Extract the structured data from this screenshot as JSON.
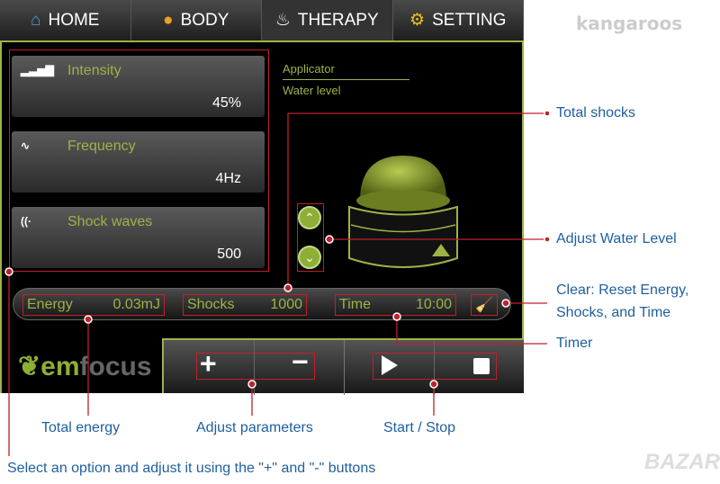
{
  "watermarks": {
    "top_left": "kangaroos",
    "bottom_right": "BAZAR"
  },
  "tabs": [
    {
      "label": "HOME",
      "icon": "home-icon"
    },
    {
      "label": "BODY",
      "icon": "body-icon"
    },
    {
      "label": "THERAPY",
      "icon": "therapy-icon",
      "active": true
    },
    {
      "label": "SETTING",
      "icon": "gear-icon"
    }
  ],
  "params": [
    {
      "label": "Intensity",
      "value": "45%",
      "icon": "signal-bars-icon"
    },
    {
      "label": "Frequency",
      "value": "4Hz",
      "icon": "wave-icon"
    },
    {
      "label": "Shock waves",
      "value": "500",
      "icon": "shock-wave-icon"
    }
  ],
  "applicator": {
    "title": "Applicator",
    "water_level": "Water level"
  },
  "status": {
    "energy_label": "Energy",
    "energy_value": "0.03mJ",
    "shocks_label": "Shocks",
    "shocks_value": "1000",
    "time_label": "Time",
    "time_value": "10:00"
  },
  "logo": {
    "em": "em",
    "focus": "focus"
  },
  "controls": {
    "plus": "+",
    "minus": "−"
  },
  "annotations": {
    "total_shocks": "Total shocks",
    "adjust_water": "Adjust Water Level",
    "clear_1": "Clear: Reset Energy,",
    "clear_2": "Shocks, and Time",
    "timer": "Timer",
    "total_energy": "Total energy",
    "adjust_params": "Adjust parameters",
    "start_stop": "Start / Stop",
    "select_option": "Select an option and adjust it using the \"+\" and \"-\" buttons"
  },
  "colors": {
    "accent": "#9bb347",
    "annotation_line": "#c0202a",
    "annotation_text": "#1f5f9f"
  }
}
